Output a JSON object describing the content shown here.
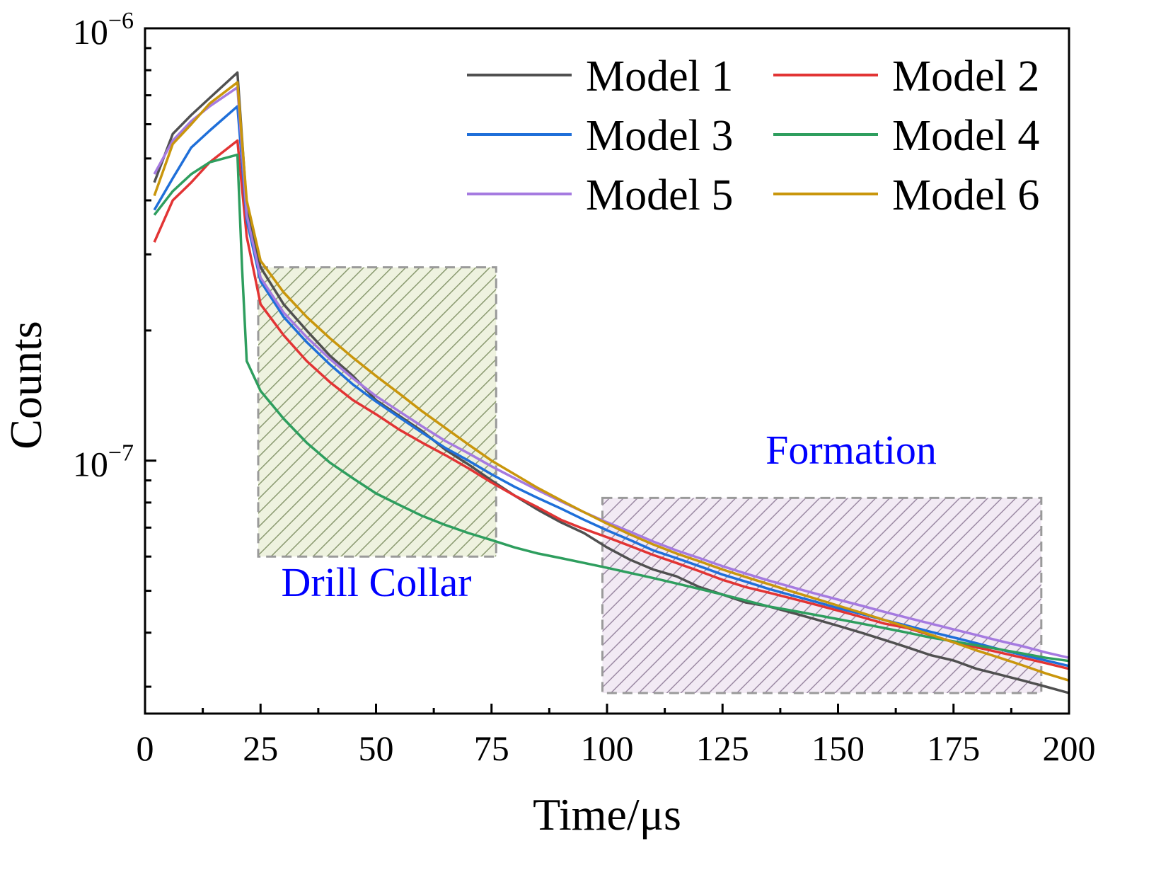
{
  "chart_data": {
    "type": "line",
    "xlabel": "Time/μs",
    "ylabel": "Counts",
    "yscale": "log",
    "xlim": [
      0,
      200
    ],
    "ylim": [
      2.6e-08,
      1e-06
    ],
    "xticks": [
      0,
      25,
      50,
      75,
      100,
      125,
      150,
      175,
      200
    ],
    "xtick_labels": [
      "0",
      "25",
      "50",
      "75",
      "100",
      "125",
      "150",
      "175",
      "200"
    ],
    "yticks": [
      {
        "value": 1e-06,
        "base": "10",
        "exp": "−6"
      },
      {
        "value": 1e-07,
        "base": "10",
        "exp": "−7"
      }
    ],
    "legend_position": "top-right",
    "grid": false,
    "series": [
      {
        "name": "Model 1",
        "color": "#505050",
        "points": [
          [
            2,
            4.4e-07
          ],
          [
            6,
            5.7e-07
          ],
          [
            10,
            6.3e-07
          ],
          [
            14,
            6.9e-07
          ],
          [
            20,
            7.9e-07
          ],
          [
            22,
            3.9e-07
          ],
          [
            25,
            2.8e-07
          ],
          [
            30,
            2.3e-07
          ],
          [
            35,
            2e-07
          ],
          [
            40,
            1.75e-07
          ],
          [
            45,
            1.57e-07
          ],
          [
            50,
            1.38e-07
          ],
          [
            55,
            1.27e-07
          ],
          [
            60,
            1.17e-07
          ],
          [
            65,
            1.06e-07
          ],
          [
            70,
            9.8e-08
          ],
          [
            75,
            9e-08
          ],
          [
            80,
            8.3e-08
          ],
          [
            85,
            7.7e-08
          ],
          [
            90,
            7.2e-08
          ],
          [
            95,
            6.8e-08
          ],
          [
            100,
            6.3e-08
          ],
          [
            105,
            5.9e-08
          ],
          [
            110,
            5.6e-08
          ],
          [
            115,
            5.4e-08
          ],
          [
            120,
            5.1e-08
          ],
          [
            125,
            4.9e-08
          ],
          [
            130,
            4.7e-08
          ],
          [
            135,
            4.6e-08
          ],
          [
            140,
            4.45e-08
          ],
          [
            145,
            4.3e-08
          ],
          [
            150,
            4.15e-08
          ],
          [
            155,
            4e-08
          ],
          [
            160,
            3.85e-08
          ],
          [
            165,
            3.7e-08
          ],
          [
            170,
            3.55e-08
          ],
          [
            175,
            3.45e-08
          ],
          [
            180,
            3.3e-08
          ],
          [
            185,
            3.2e-08
          ],
          [
            190,
            3.1e-08
          ],
          [
            195,
            3e-08
          ],
          [
            200,
            2.9e-08
          ]
        ]
      },
      {
        "name": "Model 2",
        "color": "#e23434",
        "points": [
          [
            2,
            3.2e-07
          ],
          [
            6,
            4e-07
          ],
          [
            10,
            4.4e-07
          ],
          [
            14,
            4.9e-07
          ],
          [
            20,
            5.5e-07
          ],
          [
            22,
            3.3e-07
          ],
          [
            25,
            2.3e-07
          ],
          [
            30,
            1.95e-07
          ],
          [
            35,
            1.7e-07
          ],
          [
            40,
            1.52e-07
          ],
          [
            45,
            1.38e-07
          ],
          [
            50,
            1.28e-07
          ],
          [
            55,
            1.18e-07
          ],
          [
            60,
            1.1e-07
          ],
          [
            65,
            1.03e-07
          ],
          [
            70,
            9.6e-08
          ],
          [
            75,
            8.9e-08
          ],
          [
            80,
            8.3e-08
          ],
          [
            85,
            7.8e-08
          ],
          [
            90,
            7.3e-08
          ],
          [
            95,
            6.95e-08
          ],
          [
            100,
            6.65e-08
          ],
          [
            105,
            6.35e-08
          ],
          [
            110,
            6.05e-08
          ],
          [
            115,
            5.8e-08
          ],
          [
            120,
            5.55e-08
          ],
          [
            125,
            5.3e-08
          ],
          [
            130,
            5.1e-08
          ],
          [
            135,
            4.95e-08
          ],
          [
            140,
            4.8e-08
          ],
          [
            145,
            4.65e-08
          ],
          [
            150,
            4.5e-08
          ],
          [
            155,
            4.35e-08
          ],
          [
            160,
            4.2e-08
          ],
          [
            165,
            4.1e-08
          ],
          [
            170,
            3.95e-08
          ],
          [
            175,
            3.8e-08
          ],
          [
            180,
            3.7e-08
          ],
          [
            185,
            3.6e-08
          ],
          [
            190,
            3.5e-08
          ],
          [
            195,
            3.4e-08
          ],
          [
            200,
            3.3e-08
          ]
        ]
      },
      {
        "name": "Model 3",
        "color": "#1f6fd9",
        "points": [
          [
            2,
            3.8e-07
          ],
          [
            6,
            4.5e-07
          ],
          [
            10,
            5.3e-07
          ],
          [
            14,
            5.8e-07
          ],
          [
            20,
            6.6e-07
          ],
          [
            22,
            3.6e-07
          ],
          [
            25,
            2.6e-07
          ],
          [
            30,
            2.15e-07
          ],
          [
            35,
            1.88e-07
          ],
          [
            40,
            1.67e-07
          ],
          [
            45,
            1.5e-07
          ],
          [
            50,
            1.37e-07
          ],
          [
            55,
            1.26e-07
          ],
          [
            60,
            1.16e-07
          ],
          [
            65,
            1.07e-07
          ],
          [
            70,
            1e-07
          ],
          [
            75,
            9.3e-08
          ],
          [
            80,
            8.7e-08
          ],
          [
            85,
            8.2e-08
          ],
          [
            90,
            7.75e-08
          ],
          [
            95,
            7.3e-08
          ],
          [
            100,
            6.9e-08
          ],
          [
            105,
            6.55e-08
          ],
          [
            110,
            6.2e-08
          ],
          [
            115,
            5.95e-08
          ],
          [
            120,
            5.7e-08
          ],
          [
            125,
            5.45e-08
          ],
          [
            130,
            5.25e-08
          ],
          [
            135,
            5.05e-08
          ],
          [
            140,
            4.88e-08
          ],
          [
            145,
            4.72e-08
          ],
          [
            150,
            4.56e-08
          ],
          [
            155,
            4.42e-08
          ],
          [
            160,
            4.28e-08
          ],
          [
            165,
            4.15e-08
          ],
          [
            170,
            4.02e-08
          ],
          [
            175,
            3.9e-08
          ],
          [
            180,
            3.78e-08
          ],
          [
            185,
            3.66e-08
          ],
          [
            190,
            3.55e-08
          ],
          [
            195,
            3.45e-08
          ],
          [
            200,
            3.35e-08
          ]
        ]
      },
      {
        "name": "Model 4",
        "color": "#2e9e5e",
        "points": [
          [
            2,
            3.7e-07
          ],
          [
            6,
            4.2e-07
          ],
          [
            10,
            4.6e-07
          ],
          [
            14,
            4.9e-07
          ],
          [
            20,
            5.1e-07
          ],
          [
            21,
            2.8e-07
          ],
          [
            22,
            1.7e-07
          ],
          [
            25,
            1.45e-07
          ],
          [
            30,
            1.25e-07
          ],
          [
            35,
            1.1e-07
          ],
          [
            40,
            9.9e-08
          ],
          [
            45,
            9.1e-08
          ],
          [
            50,
            8.4e-08
          ],
          [
            55,
            7.9e-08
          ],
          [
            60,
            7.45e-08
          ],
          [
            65,
            7.1e-08
          ],
          [
            70,
            6.8e-08
          ],
          [
            75,
            6.55e-08
          ],
          [
            80,
            6.3e-08
          ],
          [
            85,
            6.1e-08
          ],
          [
            90,
            5.95e-08
          ],
          [
            95,
            5.8e-08
          ],
          [
            100,
            5.65e-08
          ],
          [
            105,
            5.5e-08
          ],
          [
            110,
            5.35e-08
          ],
          [
            115,
            5.2e-08
          ],
          [
            120,
            5.05e-08
          ],
          [
            125,
            4.9e-08
          ],
          [
            130,
            4.75e-08
          ],
          [
            135,
            4.6e-08
          ],
          [
            140,
            4.5e-08
          ],
          [
            145,
            4.4e-08
          ],
          [
            150,
            4.3e-08
          ],
          [
            155,
            4.2e-08
          ],
          [
            160,
            4.1e-08
          ],
          [
            165,
            4e-08
          ],
          [
            170,
            3.9e-08
          ],
          [
            175,
            3.82e-08
          ],
          [
            180,
            3.74e-08
          ],
          [
            185,
            3.66e-08
          ],
          [
            190,
            3.58e-08
          ],
          [
            195,
            3.5e-08
          ],
          [
            200,
            3.44e-08
          ]
        ]
      },
      {
        "name": "Model 5",
        "color": "#a57ae0",
        "points": [
          [
            2,
            4.6e-07
          ],
          [
            6,
            5.5e-07
          ],
          [
            10,
            6.1e-07
          ],
          [
            14,
            6.6e-07
          ],
          [
            20,
            7.3e-07
          ],
          [
            22,
            3.7e-07
          ],
          [
            25,
            2.65e-07
          ],
          [
            30,
            2.2e-07
          ],
          [
            35,
            1.93e-07
          ],
          [
            40,
            1.72e-07
          ],
          [
            45,
            1.55e-07
          ],
          [
            50,
            1.41e-07
          ],
          [
            55,
            1.3e-07
          ],
          [
            60,
            1.2e-07
          ],
          [
            65,
            1.11e-07
          ],
          [
            70,
            1.04e-07
          ],
          [
            75,
            9.7e-08
          ],
          [
            80,
            9.1e-08
          ],
          [
            85,
            8.55e-08
          ],
          [
            90,
            8.05e-08
          ],
          [
            95,
            7.6e-08
          ],
          [
            100,
            7.2e-08
          ],
          [
            105,
            6.85e-08
          ],
          [
            110,
            6.5e-08
          ],
          [
            115,
            6.2e-08
          ],
          [
            120,
            5.95e-08
          ],
          [
            125,
            5.7e-08
          ],
          [
            130,
            5.48e-08
          ],
          [
            135,
            5.28e-08
          ],
          [
            140,
            5.1e-08
          ],
          [
            145,
            4.93e-08
          ],
          [
            150,
            4.77e-08
          ],
          [
            155,
            4.62e-08
          ],
          [
            160,
            4.47e-08
          ],
          [
            165,
            4.33e-08
          ],
          [
            170,
            4.2e-08
          ],
          [
            175,
            4.07e-08
          ],
          [
            180,
            3.95e-08
          ],
          [
            185,
            3.83e-08
          ],
          [
            190,
            3.72e-08
          ],
          [
            195,
            3.6e-08
          ],
          [
            200,
            3.5e-08
          ]
        ]
      },
      {
        "name": "Model 6",
        "color": "#c9960c",
        "points": [
          [
            2,
            4.1e-07
          ],
          [
            6,
            5.4e-07
          ],
          [
            10,
            6e-07
          ],
          [
            14,
            6.7e-07
          ],
          [
            20,
            7.5e-07
          ],
          [
            22,
            4e-07
          ],
          [
            25,
            2.9e-07
          ],
          [
            30,
            2.45e-07
          ],
          [
            35,
            2.15e-07
          ],
          [
            40,
            1.92e-07
          ],
          [
            45,
            1.73e-07
          ],
          [
            50,
            1.57e-07
          ],
          [
            55,
            1.43e-07
          ],
          [
            60,
            1.3e-07
          ],
          [
            65,
            1.19e-07
          ],
          [
            70,
            1.09e-07
          ],
          [
            75,
            1e-07
          ],
          [
            80,
            9.3e-08
          ],
          [
            85,
            8.65e-08
          ],
          [
            90,
            8.1e-08
          ],
          [
            95,
            7.6e-08
          ],
          [
            100,
            7.15e-08
          ],
          [
            105,
            6.75e-08
          ],
          [
            110,
            6.4e-08
          ],
          [
            115,
            6.1e-08
          ],
          [
            120,
            5.85e-08
          ],
          [
            125,
            5.6e-08
          ],
          [
            130,
            5.38e-08
          ],
          [
            135,
            5.18e-08
          ],
          [
            140,
            4.98e-08
          ],
          [
            145,
            4.8e-08
          ],
          [
            150,
            4.62e-08
          ],
          [
            155,
            4.45e-08
          ],
          [
            160,
            4.28e-08
          ],
          [
            165,
            4.12e-08
          ],
          [
            170,
            3.96e-08
          ],
          [
            175,
            3.8e-08
          ],
          [
            180,
            3.64e-08
          ],
          [
            185,
            3.5e-08
          ],
          [
            190,
            3.36e-08
          ],
          [
            195,
            3.22e-08
          ],
          [
            200,
            3.1e-08
          ]
        ]
      }
    ],
    "annotations": [
      {
        "label": "Drill Collar",
        "color": "#0000ff",
        "x_range": [
          24.5,
          76
        ],
        "y_range": [
          6e-08,
          2.8e-07
        ],
        "fill": "#c9d6a8"
      },
      {
        "label": "Formation",
        "color": "#0000ff",
        "x_range": [
          99,
          194
        ],
        "y_range": [
          2.9e-08,
          8.2e-08
        ],
        "fill": "#d8c8dc"
      }
    ]
  }
}
